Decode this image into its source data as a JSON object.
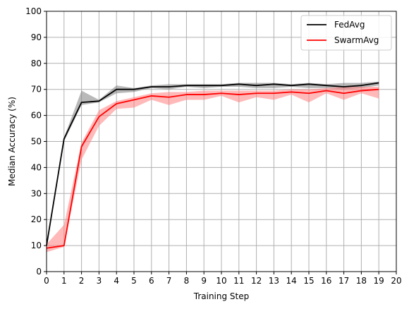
{
  "chart_data": {
    "type": "line",
    "xlabel": "Training Step",
    "ylabel": "Median Accuracy (%)",
    "xlim": [
      0,
      20
    ],
    "ylim": [
      0,
      100
    ],
    "xticks": [
      "0",
      "1",
      "2",
      "3",
      "4",
      "5",
      "6",
      "7",
      "8",
      "9",
      "10",
      "11",
      "12",
      "13",
      "14",
      "15",
      "16",
      "17",
      "18",
      "19",
      "20"
    ],
    "yticks": [
      "0",
      "10",
      "20",
      "30",
      "40",
      "50",
      "60",
      "70",
      "80",
      "90",
      "100"
    ],
    "grid": true,
    "legend_position": "top-right",
    "x": [
      0,
      1,
      2,
      3,
      4,
      5,
      6,
      7,
      8,
      9,
      10,
      11,
      12,
      13,
      14,
      15,
      16,
      17,
      18,
      19
    ],
    "series": [
      {
        "name": "FedAvg",
        "color": "#000000",
        "band_color": "#808080",
        "values": [
          10,
          51,
          65,
          65.5,
          70,
          70,
          71,
          71,
          71.5,
          71.5,
          71.5,
          72,
          71.5,
          72,
          71.5,
          72,
          71.5,
          71,
          71.5,
          72.5
        ],
        "lower": [
          10,
          50,
          64,
          65,
          68.5,
          69,
          70.5,
          70,
          71,
          70.5,
          71,
          71,
          70.5,
          70.5,
          71,
          70.5,
          70.5,
          70,
          70.5,
          71.5
        ],
        "upper": [
          10,
          51.5,
          69.5,
          66,
          71.5,
          70.5,
          71.5,
          72,
          72,
          72,
          72,
          72.5,
          72.5,
          72.5,
          72,
          72.5,
          72,
          72.5,
          72.5,
          73
        ]
      },
      {
        "name": "SwarmAvg",
        "color": "#ff0000",
        "band_color": "#ff8080",
        "values": [
          9,
          10,
          48,
          59.5,
          64.5,
          66,
          67.5,
          67,
          68,
          68,
          68.5,
          68,
          68.5,
          68.5,
          69,
          68.5,
          69.5,
          68.5,
          69.5,
          70
        ],
        "lower": [
          7.5,
          9.5,
          43,
          56,
          62.5,
          63,
          66,
          64,
          66,
          66,
          67.5,
          65,
          67,
          66,
          68,
          65,
          68.5,
          66,
          68.5,
          66.5
        ],
        "upper": [
          10.5,
          18,
          49.5,
          62,
          65.5,
          67,
          68.5,
          69,
          69,
          69.5,
          69.5,
          69.5,
          69.5,
          69.5,
          70,
          70,
          70.5,
          71,
          71,
          71
        ]
      }
    ]
  }
}
